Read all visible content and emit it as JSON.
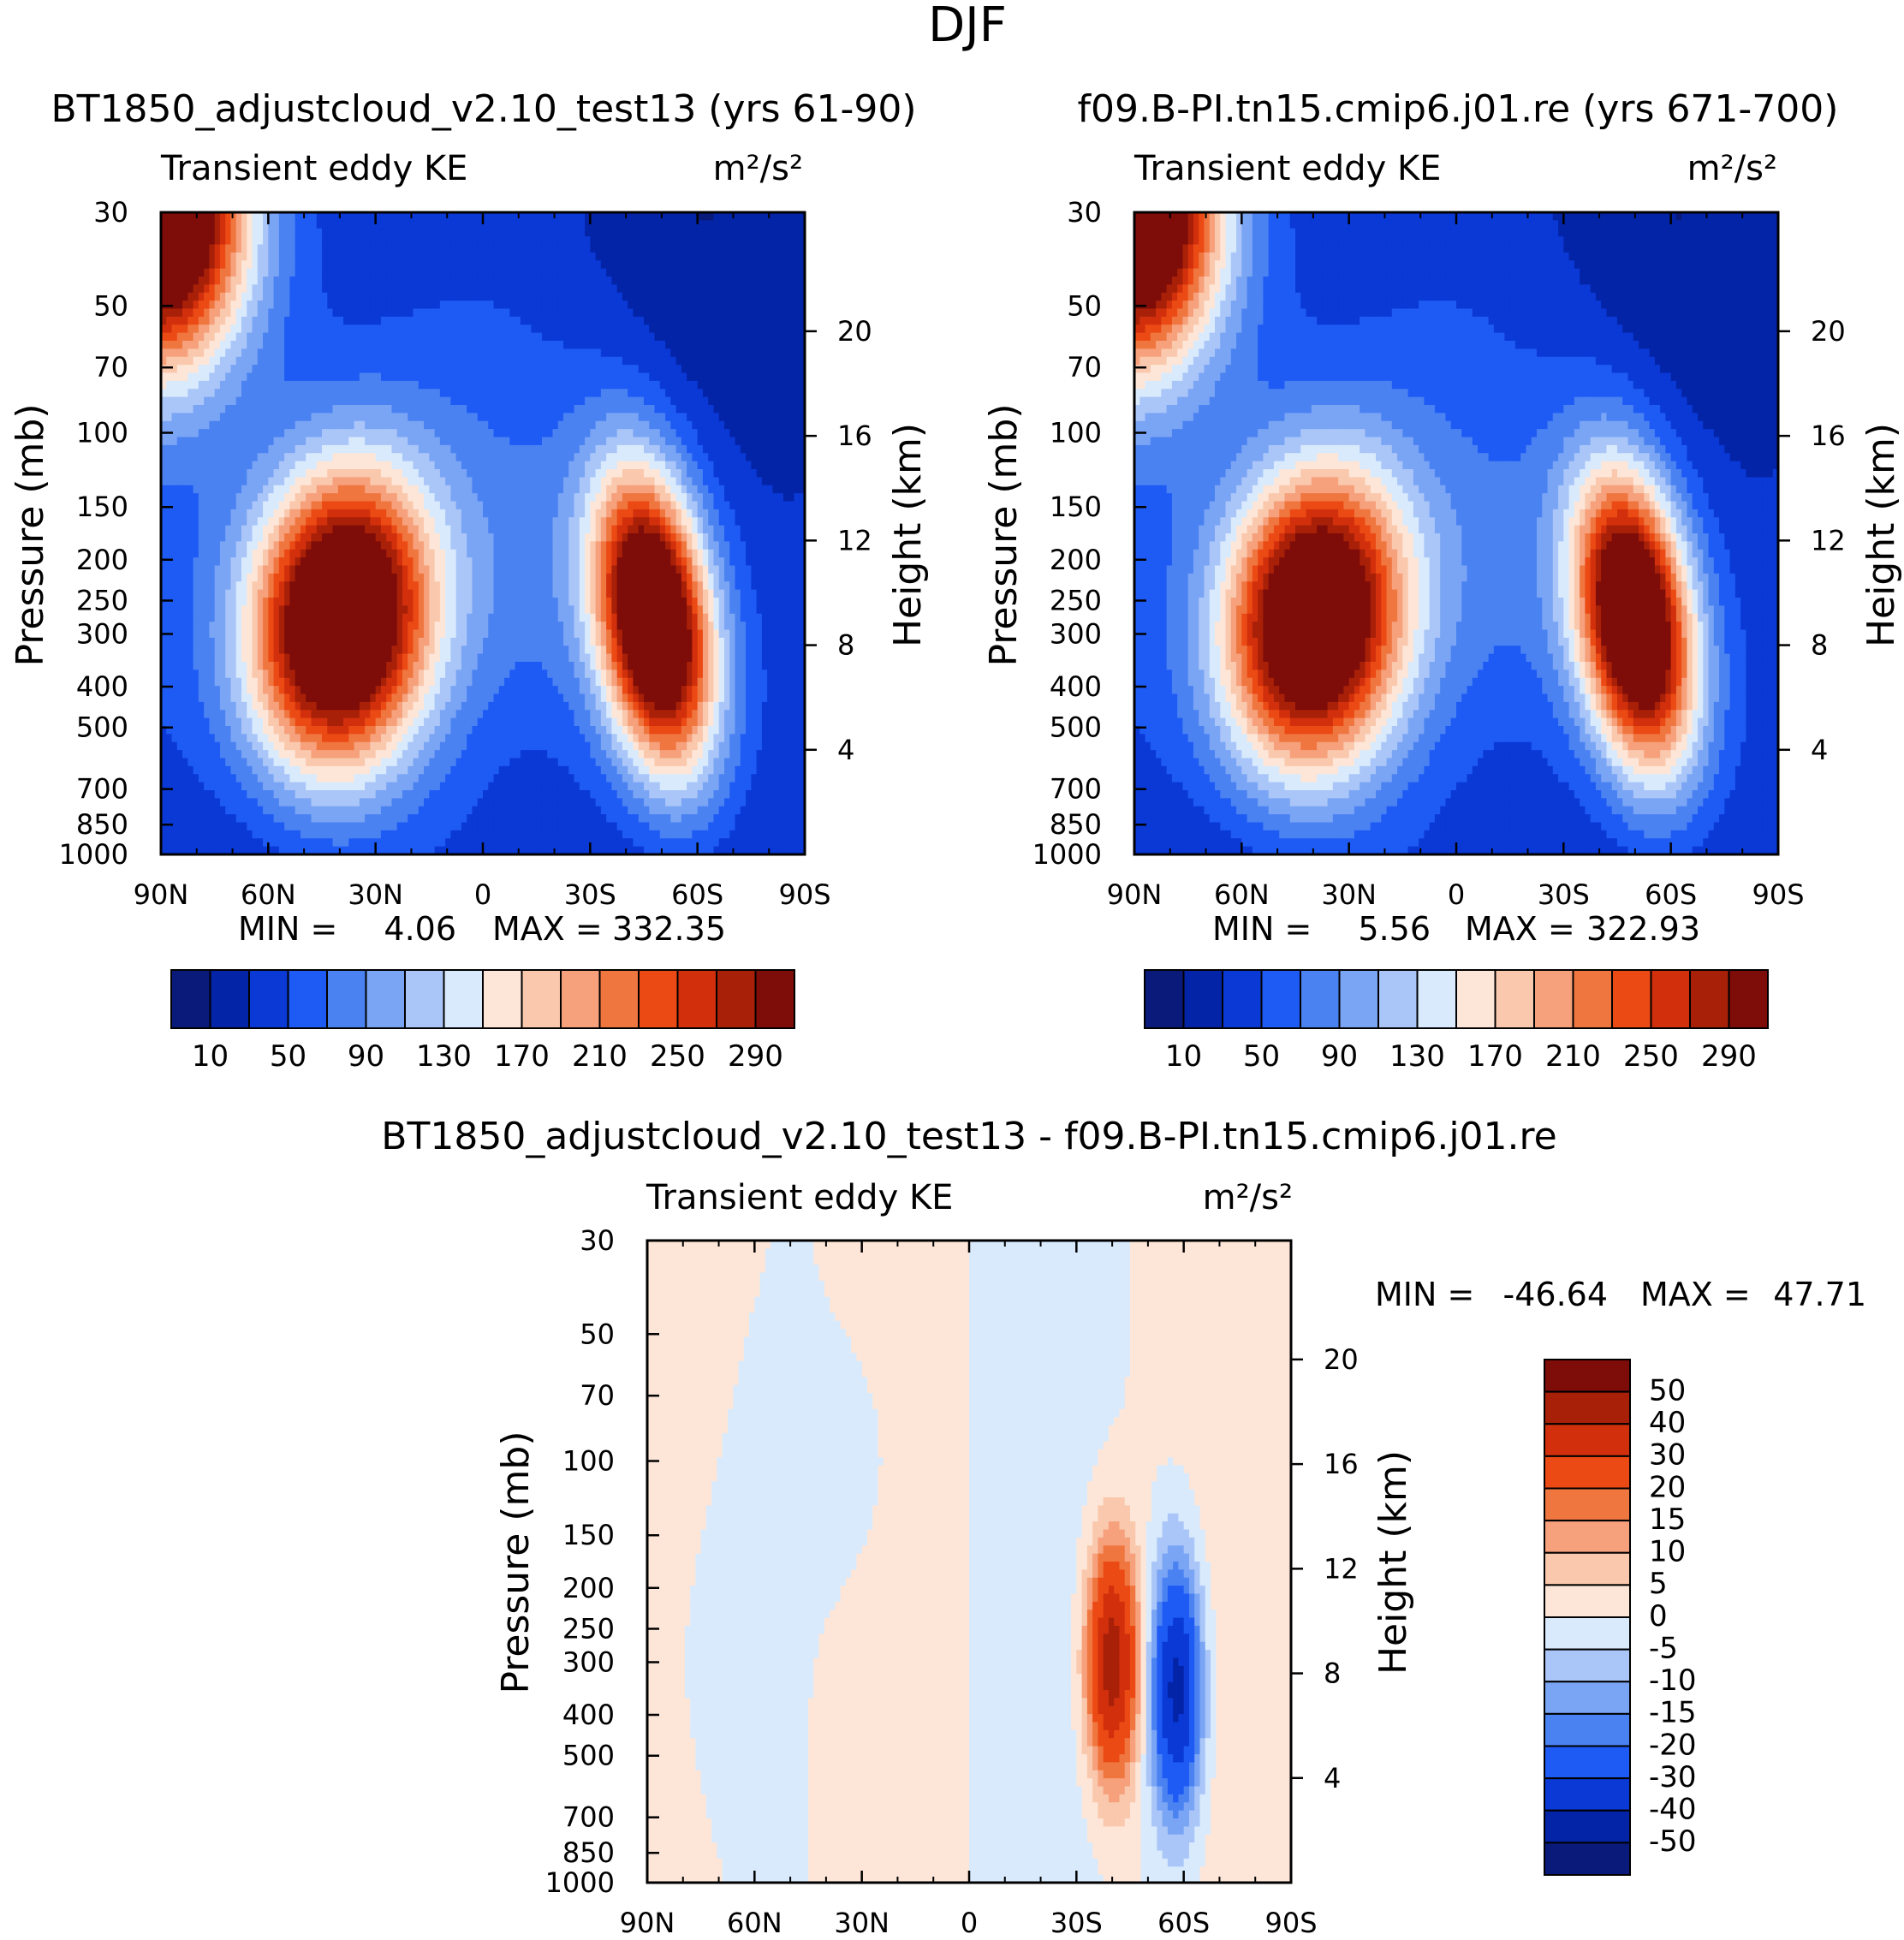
{
  "figure": {
    "title": "DJF"
  },
  "colors": {
    "abs_palette": [
      "#0a1a7a",
      "#0424a8",
      "#0a39d6",
      "#1e5af4",
      "#4a82f2",
      "#7aa4f4",
      "#aac6f8",
      "#d8eafc",
      "#fde6d8",
      "#f9c8ad",
      "#f6a07c",
      "#f07640",
      "#ec4a14",
      "#d2300c",
      "#a82008",
      "#7e0c08"
    ],
    "diff_palette": [
      "#0a1a7a",
      "#0424a8",
      "#0a39d6",
      "#1e5af4",
      "#4a82f2",
      "#7aa4f4",
      "#aac6f8",
      "#d8eafc",
      "#fde6d8",
      "#f9c8ad",
      "#f6a07c",
      "#f07640",
      "#ec4a14",
      "#d2300c",
      "#a82008",
      "#7e0c08"
    ]
  },
  "chart_data": [
    {
      "type": "heatmap",
      "title": "BT1850_adjustcloud_v2.10_test13 (yrs 61-90)",
      "subtitle_left": "Transient eddy KE",
      "units": "m²/s²",
      "ylabel": "Pressure (mb)",
      "ylabel_right": "Height (km)",
      "x_ticks": [
        "90N",
        "60N",
        "30N",
        "0",
        "30S",
        "60S",
        "90S"
      ],
      "x_range": [
        90,
        -90
      ],
      "y_ticks": [
        30,
        50,
        70,
        100,
        150,
        200,
        250,
        300,
        400,
        500,
        700,
        850,
        1000
      ],
      "y_range": [
        30,
        1000
      ],
      "y_right_ticks": [
        20,
        16,
        12,
        8,
        4
      ],
      "stats": {
        "min_label": "MIN =",
        "min": "4.06",
        "max_label": "MAX =",
        "max": "332.35"
      },
      "colorbar_labels": [
        "10",
        "50",
        "90",
        "130",
        "170",
        "210",
        "250",
        "290"
      ],
      "levels": [
        10,
        30,
        50,
        70,
        90,
        110,
        130,
        150,
        170,
        190,
        210,
        230,
        250,
        270,
        290
      ],
      "features": [
        {
          "kind": "background",
          "value": 40
        },
        {
          "kind": "jet",
          "lat": 40,
          "pres": 280,
          "peak": 332,
          "lat_width": 22,
          "pres_width": 280,
          "tilt": 0.15
        },
        {
          "kind": "jet",
          "lat": -48,
          "pres": 280,
          "peak": 325,
          "lat_width": 14,
          "pres_width": 260,
          "tilt": -0.3
        },
        {
          "kind": "polar_strat",
          "lat": 90,
          "pres": 30,
          "peak": 320
        }
      ]
    },
    {
      "type": "heatmap",
      "title": "f09.B-PI.tn15.cmip6.j01.re (yrs 671-700)",
      "subtitle_left": "Transient eddy KE",
      "units": "m²/s²",
      "ylabel": "Pressure (mb)",
      "ylabel_right": "Height (km)",
      "x_ticks": [
        "90N",
        "60N",
        "30N",
        "0",
        "30S",
        "60S",
        "90S"
      ],
      "x_range": [
        90,
        -90
      ],
      "y_ticks": [
        30,
        50,
        70,
        100,
        150,
        200,
        250,
        300,
        400,
        500,
        700,
        850,
        1000
      ],
      "y_range": [
        30,
        1000
      ],
      "y_right_ticks": [
        20,
        16,
        12,
        8,
        4
      ],
      "stats": {
        "min_label": "MIN =",
        "min": "5.56",
        "max_label": "MAX =",
        "max": "322.93"
      },
      "colorbar_labels": [
        "10",
        "50",
        "90",
        "130",
        "170",
        "210",
        "250",
        "290"
      ],
      "levels": [
        10,
        30,
        50,
        70,
        90,
        110,
        130,
        150,
        170,
        190,
        210,
        230,
        250,
        270,
        290
      ],
      "features": [
        {
          "kind": "background",
          "value": 40
        },
        {
          "kind": "jet",
          "lat": 40,
          "pres": 280,
          "peak": 320,
          "lat_width": 22,
          "pres_width": 280,
          "tilt": 0.15
        },
        {
          "kind": "jet",
          "lat": -50,
          "pres": 280,
          "peak": 320,
          "lat_width": 14,
          "pres_width": 260,
          "tilt": -0.3
        },
        {
          "kind": "polar_strat",
          "lat": 90,
          "pres": 30,
          "peak": 322
        }
      ]
    },
    {
      "type": "heatmap",
      "title": "BT1850_adjustcloud_v2.10_test13 - f09.B-PI.tn15.cmip6.j01.re",
      "subtitle_left": "Transient eddy KE",
      "units": "m²/s²",
      "ylabel": "Pressure (mb)",
      "ylabel_right": "Height (km)",
      "x_ticks": [
        "90N",
        "60N",
        "30N",
        "0",
        "30S",
        "60S",
        "90S"
      ],
      "x_range": [
        90,
        -90
      ],
      "y_ticks": [
        30,
        50,
        70,
        100,
        150,
        200,
        250,
        300,
        400,
        500,
        700,
        850,
        1000
      ],
      "y_range": [
        30,
        1000
      ],
      "y_right_ticks": [
        20,
        16,
        12,
        8,
        4
      ],
      "stats": {
        "min_label": "MIN =",
        "min": "-46.64",
        "max_label": "MAX =",
        "max": "47.71"
      },
      "colorbar_labels": [
        "50",
        "40",
        "30",
        "20",
        "15",
        "10",
        "5",
        "0",
        "-5",
        "-10",
        "-15",
        "-20",
        "-30",
        "-40",
        "-50"
      ],
      "levels": [
        -50,
        -40,
        -30,
        -20,
        -15,
        -10,
        -5,
        0,
        5,
        10,
        15,
        20,
        30,
        40,
        50
      ],
      "features": [
        {
          "kind": "dipole",
          "pos_lat": -40,
          "neg_lat": -58,
          "pres": 300,
          "peak": 47,
          "trough": -46
        }
      ]
    }
  ]
}
